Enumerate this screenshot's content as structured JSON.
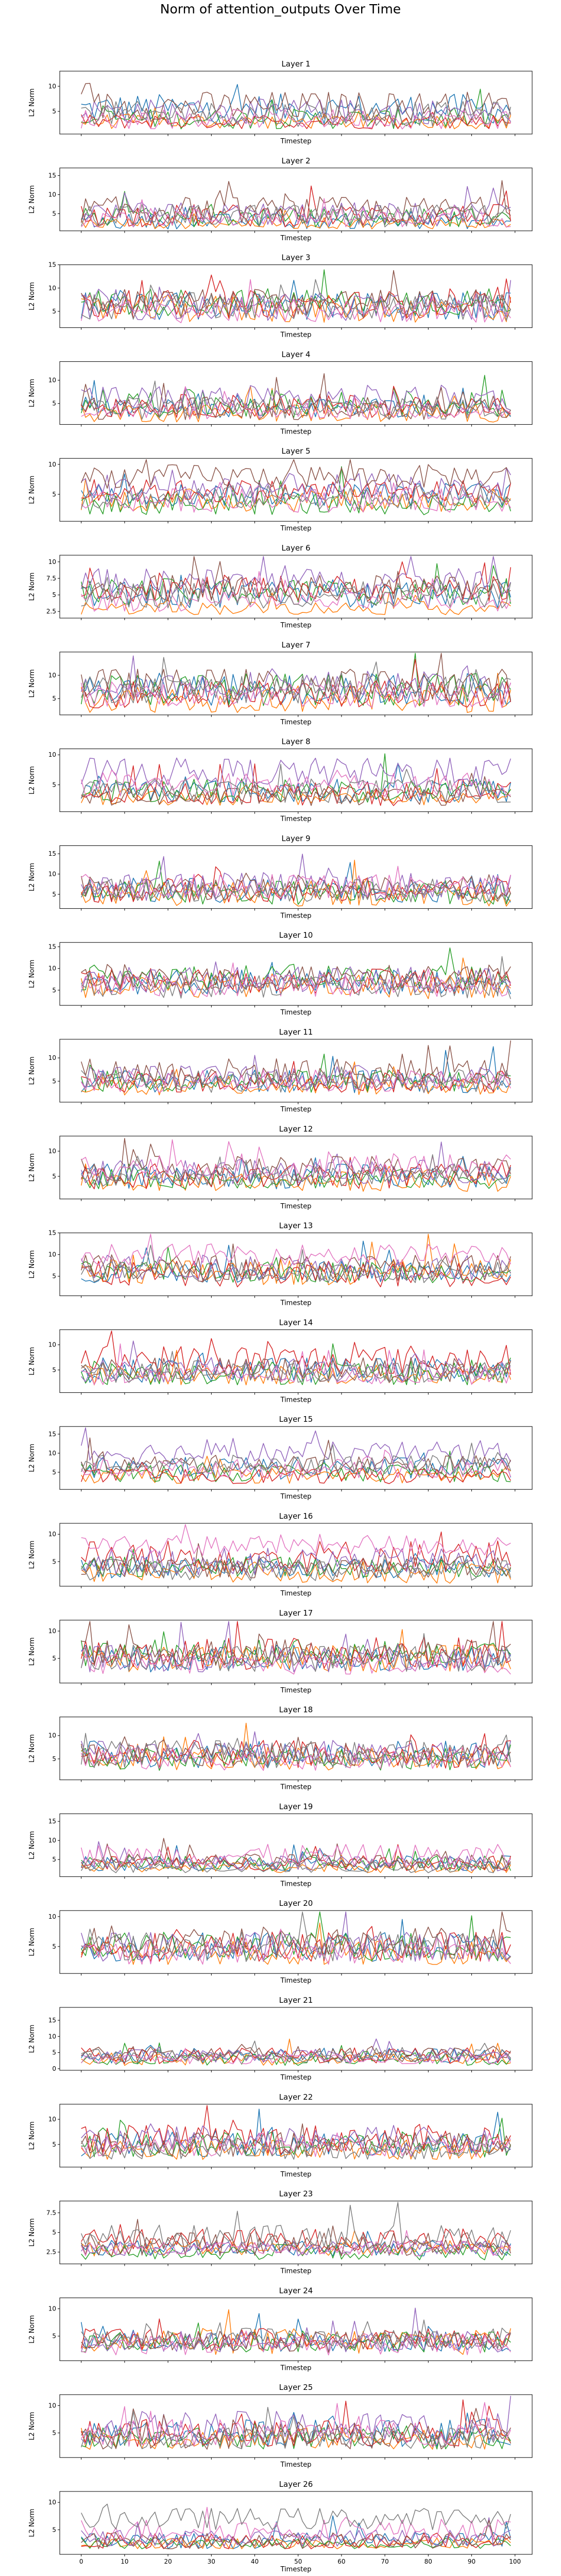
{
  "chart_data": {
    "type": "line",
    "title": "Norm of attention_outputs Over Time",
    "xlabel": "Timestep",
    "ylabel": "L2 Norm",
    "xlim": [
      0,
      99
    ],
    "x_ticks": [
      0,
      10,
      20,
      30,
      40,
      50,
      60,
      70,
      80,
      90,
      100
    ],
    "series_colors": [
      "#1f77b4",
      "#ff7f0e",
      "#2ca02c",
      "#d62728",
      "#9467bd",
      "#8c564b",
      "#e377c2",
      "#7f7f7f"
    ],
    "grid": false,
    "legend": "none",
    "panels": [
      {
        "title": "Layer 1",
        "ylim": [
          0.5,
          13
        ],
        "yticks": [
          5,
          10
        ],
        "series_profile": [
          [
            5.5,
            3
          ],
          [
            3,
            1.5
          ],
          [
            3.5,
            2
          ],
          [
            3,
            1.5
          ],
          [
            5,
            2.5
          ],
          [
            6,
            3
          ],
          [
            3.5,
            2
          ],
          [
            4.5,
            2.5
          ]
        ]
      },
      {
        "title": "Layer 2",
        "ylim": [
          0.5,
          17
        ],
        "yticks": [
          5,
          10,
          15
        ],
        "series_profile": [
          [
            3,
            2
          ],
          [
            2.5,
            1.5
          ],
          [
            4,
            2.5
          ],
          [
            4.5,
            3
          ],
          [
            5,
            3
          ],
          [
            6,
            3.5
          ],
          [
            4,
            2.5
          ],
          [
            4.5,
            3
          ]
        ]
      },
      {
        "title": "Layer 3",
        "ylim": [
          1.5,
          15
        ],
        "yticks": [
          5,
          10,
          15
        ],
        "series_profile": [
          [
            6,
            3
          ],
          [
            5.5,
            3
          ],
          [
            7,
            3
          ],
          [
            6.5,
            3
          ],
          [
            6,
            3
          ],
          [
            7,
            3
          ],
          [
            5,
            2.5
          ],
          [
            6,
            3
          ]
        ]
      },
      {
        "title": "Layer 4",
        "ylim": [
          0.5,
          14
        ],
        "yticks": [
          5,
          10
        ],
        "series_profile": [
          [
            4,
            2
          ],
          [
            3,
            2
          ],
          [
            5,
            3
          ],
          [
            4.5,
            2.5
          ],
          [
            6,
            3
          ],
          [
            4,
            2.5
          ],
          [
            3.5,
            2
          ],
          [
            4,
            2.5
          ]
        ]
      },
      {
        "title": "Layer 5",
        "ylim": [
          0.5,
          11
        ],
        "yticks": [
          5,
          10
        ],
        "series_profile": [
          [
            5,
            2
          ],
          [
            4,
            2
          ],
          [
            3.5,
            2
          ],
          [
            5.5,
            2
          ],
          [
            6,
            2.5
          ],
          [
            8,
            2
          ],
          [
            4,
            2
          ],
          [
            4.5,
            2
          ]
        ]
      },
      {
        "title": "Layer 6",
        "ylim": [
          1.5,
          11
        ],
        "yticks": [
          2.5,
          5.0,
          7.5,
          10.0
        ],
        "series_profile": [
          [
            5,
            2
          ],
          [
            3,
            1
          ],
          [
            5.5,
            2
          ],
          [
            6,
            2
          ],
          [
            7,
            2
          ],
          [
            6,
            2
          ],
          [
            4,
            1.5
          ],
          [
            5,
            2
          ]
        ]
      },
      {
        "title": "Layer 7",
        "ylim": [
          1.5,
          15
        ],
        "yticks": [
          5,
          10
        ],
        "series_profile": [
          [
            7,
            3.5
          ],
          [
            5,
            3
          ],
          [
            7,
            3.5
          ],
          [
            6,
            3
          ],
          [
            8,
            3
          ],
          [
            8,
            3.5
          ],
          [
            6,
            3
          ],
          [
            7,
            3
          ]
        ]
      },
      {
        "title": "Layer 8",
        "ylim": [
          0.5,
          11
        ],
        "yticks": [
          5,
          10
        ],
        "series_profile": [
          [
            4,
            2
          ],
          [
            3,
            1.5
          ],
          [
            4,
            2
          ],
          [
            3.5,
            2
          ],
          [
            7,
            2.5
          ],
          [
            3,
            1.5
          ],
          [
            5,
            2
          ],
          [
            4,
            2
          ]
        ]
      },
      {
        "title": "Layer 9",
        "ylim": [
          1.5,
          17
        ],
        "yticks": [
          5,
          10,
          15
        ],
        "series_profile": [
          [
            6,
            3
          ],
          [
            5,
            3
          ],
          [
            5.5,
            3
          ],
          [
            6,
            3
          ],
          [
            7,
            3.5
          ],
          [
            6.5,
            3
          ],
          [
            7,
            3
          ],
          [
            6,
            3
          ]
        ]
      },
      {
        "title": "Layer 10",
        "ylim": [
          1.5,
          16
        ],
        "yticks": [
          5,
          10,
          15
        ],
        "series_profile": [
          [
            7,
            3
          ],
          [
            6,
            3
          ],
          [
            8,
            3
          ],
          [
            7,
            3
          ],
          [
            7.5,
            3
          ],
          [
            8,
            3
          ],
          [
            6,
            2.5
          ],
          [
            6,
            3
          ]
        ]
      },
      {
        "title": "Layer 11",
        "ylim": [
          0.5,
          14
        ],
        "yticks": [
          5,
          10
        ],
        "series_profile": [
          [
            5,
            2.5
          ],
          [
            4,
            2
          ],
          [
            5,
            2.5
          ],
          [
            5,
            2.5
          ],
          [
            6,
            2.5
          ],
          [
            7,
            3
          ],
          [
            5,
            2.5
          ],
          [
            5,
            2.5
          ]
        ]
      },
      {
        "title": "Layer 12",
        "ylim": [
          0.5,
          13
        ],
        "yticks": [
          5,
          10
        ],
        "series_profile": [
          [
            5,
            2.5
          ],
          [
            4,
            2
          ],
          [
            4.5,
            2
          ],
          [
            5,
            2.5
          ],
          [
            6,
            2.5
          ],
          [
            6.5,
            2.5
          ],
          [
            7,
            2.5
          ],
          [
            5,
            2
          ]
        ]
      },
      {
        "title": "Layer 13",
        "ylim": [
          0.5,
          15
        ],
        "yticks": [
          5,
          10,
          15
        ],
        "series_profile": [
          [
            6,
            2.5
          ],
          [
            6,
            3
          ],
          [
            6,
            2.5
          ],
          [
            5.5,
            3
          ],
          [
            7,
            3
          ],
          [
            7,
            3
          ],
          [
            10,
            2.5
          ],
          [
            6,
            2.5
          ]
        ]
      },
      {
        "title": "Layer 14",
        "ylim": [
          0.5,
          13
        ],
        "yticks": [
          5,
          10
        ],
        "series_profile": [
          [
            5,
            2.5
          ],
          [
            4,
            2
          ],
          [
            4.5,
            2.5
          ],
          [
            7,
            3
          ],
          [
            5,
            2.5
          ],
          [
            5,
            2.5
          ],
          [
            4,
            2
          ],
          [
            4.5,
            2
          ]
        ]
      },
      {
        "title": "Layer 15",
        "ylim": [
          0.5,
          17
        ],
        "yticks": [
          5,
          10,
          15
        ],
        "series_profile": [
          [
            6,
            3
          ],
          [
            4,
            2
          ],
          [
            5,
            2.5
          ],
          [
            4,
            2
          ],
          [
            10,
            3
          ],
          [
            7,
            2.5
          ],
          [
            6,
            2.5
          ],
          [
            7,
            2.5
          ]
        ]
      },
      {
        "title": "Layer 16",
        "ylim": [
          0.5,
          12
        ],
        "yticks": [
          5,
          10
        ],
        "series_profile": [
          [
            4,
            2
          ],
          [
            3,
            2
          ],
          [
            4,
            2
          ],
          [
            6,
            3
          ],
          [
            5,
            2.5
          ],
          [
            4,
            2
          ],
          [
            8,
            2
          ],
          [
            3.5,
            2
          ]
        ]
      },
      {
        "title": "Layer 17",
        "ylim": [
          0.5,
          12
        ],
        "yticks": [
          5,
          10
        ],
        "series_profile": [
          [
            5,
            2.5
          ],
          [
            5,
            2.5
          ],
          [
            6,
            2.5
          ],
          [
            6,
            3
          ],
          [
            5,
            2.5
          ],
          [
            6,
            2.5
          ],
          [
            4,
            2
          ],
          [
            5,
            2.5
          ]
        ]
      },
      {
        "title": "Layer 18",
        "ylim": [
          0.5,
          14
        ],
        "yticks": [
          5,
          10
        ],
        "series_profile": [
          [
            6,
            3
          ],
          [
            5,
            2.5
          ],
          [
            5,
            2.5
          ],
          [
            6,
            3
          ],
          [
            6.5,
            2.5
          ],
          [
            6,
            2.5
          ],
          [
            5,
            2.5
          ],
          [
            6,
            3
          ]
        ]
      },
      {
        "title": "Layer 19",
        "ylim": [
          0.5,
          17
        ],
        "yticks": [
          5,
          10,
          15
        ],
        "series_profile": [
          [
            4,
            2
          ],
          [
            3,
            1.5
          ],
          [
            4,
            2
          ],
          [
            4,
            2
          ],
          [
            4,
            2
          ],
          [
            4.5,
            2
          ],
          [
            6,
            3
          ],
          [
            3,
            1.5
          ]
        ]
      },
      {
        "title": "Layer 20",
        "ylim": [
          0.5,
          11
        ],
        "yticks": [
          5,
          10
        ],
        "series_profile": [
          [
            5,
            2.5
          ],
          [
            4,
            2
          ],
          [
            5,
            2.5
          ],
          [
            5,
            2.5
          ],
          [
            5,
            2.5
          ],
          [
            6,
            2.5
          ],
          [
            4,
            2
          ],
          [
            5,
            2.5
          ]
        ]
      },
      {
        "title": "Layer 21",
        "ylim": [
          -0.5,
          19
        ],
        "yticks": [
          0,
          5,
          10,
          15
        ],
        "series_profile": [
          [
            4,
            2.5
          ],
          [
            3,
            2
          ],
          [
            3,
            2
          ],
          [
            4,
            2.5
          ],
          [
            4,
            2
          ],
          [
            4.5,
            2.5
          ],
          [
            3,
            1.5
          ],
          [
            4,
            2
          ]
        ]
      },
      {
        "title": "Layer 22",
        "ylim": [
          0.5,
          13
        ],
        "yticks": [
          5,
          10
        ],
        "series_profile": [
          [
            5,
            2.5
          ],
          [
            4,
            2
          ],
          [
            5,
            2.5
          ],
          [
            6,
            3
          ],
          [
            6,
            2.5
          ],
          [
            5,
            2.5
          ],
          [
            5,
            2.5
          ],
          [
            4,
            2
          ]
        ]
      },
      {
        "title": "Layer 23",
        "ylim": [
          1.0,
          9
        ],
        "yticks": [
          2.5,
          5.0,
          7.5
        ],
        "series_profile": [
          [
            3,
            1
          ],
          [
            3,
            1
          ],
          [
            2.5,
            1
          ],
          [
            4,
            1.5
          ],
          [
            3,
            1
          ],
          [
            3.5,
            1.5
          ],
          [
            3,
            1
          ],
          [
            4.5,
            1.5
          ]
        ]
      },
      {
        "title": "Layer 24",
        "ylim": [
          0.5,
          12
        ],
        "yticks": [
          5,
          10
        ],
        "series_profile": [
          [
            4,
            2
          ],
          [
            4,
            2.5
          ],
          [
            4,
            2
          ],
          [
            4.5,
            2
          ],
          [
            4,
            2
          ],
          [
            4,
            2
          ],
          [
            3.5,
            2
          ],
          [
            4.5,
            2
          ]
        ]
      },
      {
        "title": "Layer 25",
        "ylim": [
          0.5,
          12
        ],
        "yticks": [
          5,
          10
        ],
        "series_profile": [
          [
            5,
            2.5
          ],
          [
            4,
            2
          ],
          [
            4,
            2
          ],
          [
            5,
            2.5
          ],
          [
            6,
            3
          ],
          [
            4.5,
            2.5
          ],
          [
            5,
            2.5
          ],
          [
            4,
            2
          ]
        ]
      },
      {
        "title": "Layer 26",
        "ylim": [
          0.5,
          12
        ],
        "yticks": [
          5,
          10
        ],
        "series_profile": [
          [
            3,
            1.5
          ],
          [
            2.5,
            1
          ],
          [
            2.5,
            1
          ],
          [
            3,
            1.5
          ],
          [
            3.5,
            1.5
          ],
          [
            3,
            1.5
          ],
          [
            5,
            2
          ],
          [
            7,
            2
          ]
        ]
      }
    ]
  }
}
